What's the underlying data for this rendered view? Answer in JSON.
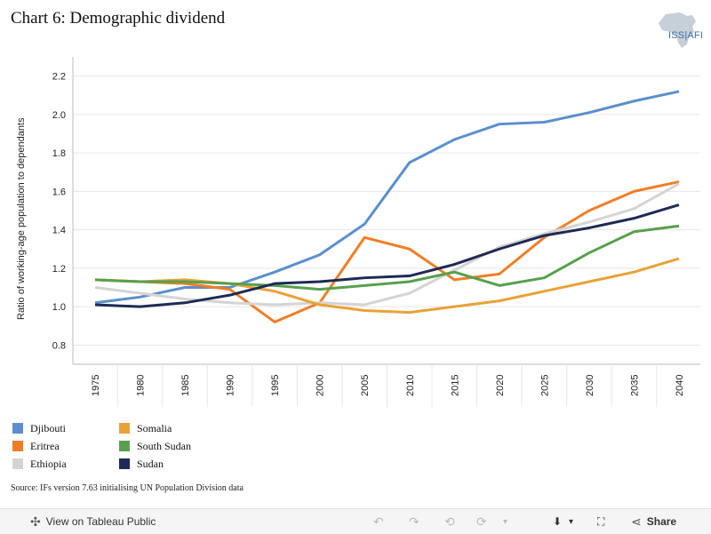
{
  "header": {
    "title": "Chart 6: Demographic dividend",
    "logo_text": "ISS|AFI"
  },
  "chart_data": {
    "type": "line",
    "title": "Chart 6: Demographic dividend",
    "xlabel": "",
    "ylabel": "Ratio of working-age population to dependants",
    "ylim": [
      0.7,
      2.3
    ],
    "yticks": [
      "2.2",
      "2.0",
      "1.8",
      "1.6",
      "1.4",
      "1.2",
      "1.0",
      "0.8"
    ],
    "x": [
      "1975",
      "1980",
      "1985",
      "1990",
      "1995",
      "2000",
      "2005",
      "2010",
      "2015",
      "2020",
      "2025",
      "2030",
      "2035",
      "2040"
    ],
    "grid": true,
    "legend_position": "bottom-left",
    "series": [
      {
        "name": "Djibouti",
        "color": "#5b8fcc",
        "values": [
          1.02,
          1.05,
          1.1,
          1.1,
          1.18,
          1.27,
          1.43,
          1.75,
          1.87,
          1.95,
          1.96,
          2.01,
          2.07,
          2.12
        ]
      },
      {
        "name": "Eritrea",
        "color": "#f07e26",
        "values": [
          1.14,
          1.13,
          1.12,
          1.09,
          0.92,
          1.02,
          1.36,
          1.3,
          1.14,
          1.17,
          1.36,
          1.5,
          1.6,
          1.65
        ]
      },
      {
        "name": "Ethiopia",
        "color": "#d4d4d4",
        "values": [
          1.1,
          1.07,
          1.04,
          1.02,
          1.01,
          1.02,
          1.01,
          1.07,
          1.19,
          1.31,
          1.38,
          1.44,
          1.51,
          1.64
        ]
      },
      {
        "name": "Somalia",
        "color": "#e8a238",
        "values": [
          1.14,
          1.13,
          1.14,
          1.12,
          1.08,
          1.01,
          0.98,
          0.97,
          1.0,
          1.03,
          1.08,
          1.13,
          1.18,
          1.25
        ]
      },
      {
        "name": "South Sudan",
        "color": "#58a04d",
        "values": [
          1.14,
          1.13,
          1.13,
          1.12,
          1.11,
          1.09,
          1.11,
          1.13,
          1.18,
          1.11,
          1.15,
          1.28,
          1.39,
          1.42
        ]
      },
      {
        "name": "Sudan",
        "color": "#1e2a55",
        "values": [
          1.01,
          1.0,
          1.02,
          1.06,
          1.12,
          1.13,
          1.15,
          1.16,
          1.22,
          1.3,
          1.37,
          1.41,
          1.46,
          1.53
        ]
      }
    ]
  },
  "source": "Source: IFs version 7.63 initialising UN Population Division data",
  "toolbar": {
    "view_label": "View on Tableau Public",
    "share_label": "Share"
  }
}
